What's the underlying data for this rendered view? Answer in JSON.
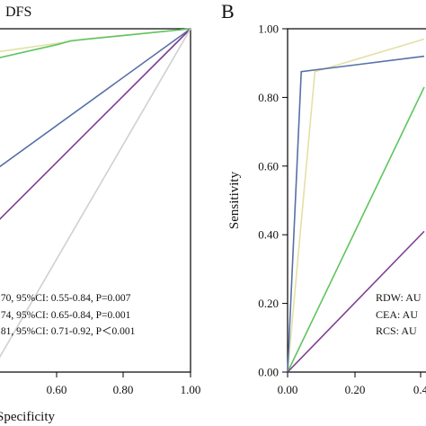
{
  "chart_data": [
    {
      "panel": "A",
      "panel_label": "",
      "title": "DFS",
      "type": "line",
      "xlabel": "Specificity",
      "ylabel": "",
      "xlim": [
        0,
        1
      ],
      "ylim": [
        0,
        1
      ],
      "x_ticks": [
        "0.60",
        "0.80",
        "1.00"
      ],
      "y_ticks": [],
      "grid": false,
      "series": [
        {
          "color": "#e3e0a8",
          "x": [
            0,
            0.36,
            0.47,
            1.0
          ],
          "y": [
            0.93,
            0.96,
            0.97,
            1.0
          ]
        },
        {
          "color": "#5ec45e",
          "x": [
            0,
            0.34,
            0.4,
            1.0
          ],
          "y": [
            0.91,
            0.955,
            0.965,
            1.0
          ]
        },
        {
          "color": "#5670a8",
          "x": [
            0,
            1.0
          ],
          "y": [
            0.58,
            1.0
          ]
        },
        {
          "color": "#7d3f8f",
          "x": [
            0,
            1.0
          ],
          "y": [
            0.42,
            1.0
          ]
        },
        {
          "color": "#d0d0d0",
          "x": [
            0,
            1.0
          ],
          "y": [
            0,
            1.0
          ]
        }
      ],
      "annotations": [
        ".70, 95%CI: 0.55-0.84, P=0.007",
        ".74, 95%CI: 0.65-0.84, P=0.001",
        ".81, 95%CI: 0.71-0.92, P＜0.001"
      ]
    },
    {
      "panel": "B",
      "panel_label": "B",
      "title": "",
      "type": "line",
      "xlabel": "",
      "ylabel": "Sensitivity",
      "xlim": [
        0,
        0.4
      ],
      "ylim": [
        0,
        1
      ],
      "x_ticks": [
        "0.00",
        "0.20",
        "0.4"
      ],
      "y_ticks": [
        "0.00",
        "0.20",
        "0.40",
        "0.60",
        "0.80",
        "1.00"
      ],
      "grid": false,
      "series": [
        {
          "color": "#e3e0a8",
          "x": [
            0,
            0.08,
            0.4
          ],
          "y": [
            0,
            0.875,
            0.97
          ]
        },
        {
          "color": "#5670a8",
          "x": [
            0,
            0.04,
            0.4
          ],
          "y": [
            0,
            0.875,
            0.92
          ]
        },
        {
          "color": "#5ec45e",
          "x": [
            0,
            0.4
          ],
          "y": [
            0,
            0.83
          ]
        },
        {
          "color": "#7d3f8f",
          "x": [
            0,
            0.4
          ],
          "y": [
            0,
            0.41
          ]
        }
      ],
      "legend": [
        "RDW: AU",
        "CEA: AU",
        "RCS: AU"
      ]
    }
  ]
}
